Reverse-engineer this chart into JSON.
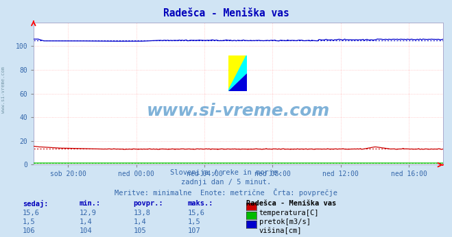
{
  "title": "Radešca - Meniška vas",
  "bg_color": "#d0e4f4",
  "plot_bg_color": "#ffffff",
  "x_labels": [
    "sob 20:00",
    "ned 00:00",
    "ned 04:00",
    "ned 08:00",
    "ned 12:00",
    "ned 16:00"
  ],
  "x_ticks_norm": [
    0.0833,
    0.25,
    0.4167,
    0.5833,
    0.75,
    0.9167
  ],
  "ylim": [
    0,
    120
  ],
  "yticks": [
    0,
    20,
    40,
    60,
    80,
    100
  ],
  "temp_color": "#cc0000",
  "pretok_color": "#00bb00",
  "visina_color": "#0000cc",
  "temp_avg": 13.8,
  "temp_min": 12.9,
  "temp_max": 15.6,
  "temp_sedaj": "15,6",
  "pretok_avg": 1.4,
  "pretok_min": 1.4,
  "pretok_max": 1.5,
  "pretok_sedaj": "1,5",
  "visina_avg": 105,
  "visina_min": 104,
  "visina_max": 107,
  "visina_sedaj": "106",
  "footer_line1": "Slovenija / reke in morje.",
  "footer_line2": "zadnji dan / 5 minut.",
  "footer_line3": "Meritve: minimalne  Enote: metrične  Črta: povprečje",
  "watermark": "www.si-vreme.com",
  "left_label": "www.si-vreme.com",
  "grid_color": "#ffbbbb",
  "text_color": "#3366aa",
  "header_color": "#0000bb",
  "table_header": "Radešca - Meniška vas"
}
